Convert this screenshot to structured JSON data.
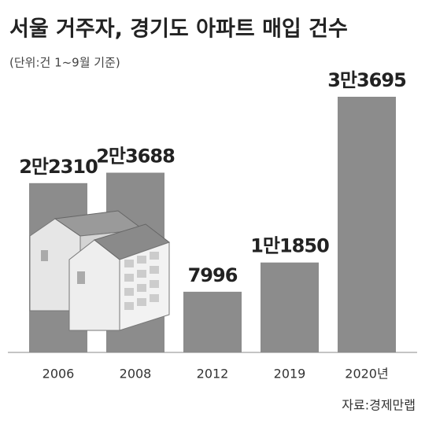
{
  "chart_data": {
    "type": "bar",
    "title": "서울 거주자, 경기도 아파트 매입 건수",
    "subtitle": "(단위:건 1~9월 기준)",
    "source": "자료:경제만랩",
    "categories": [
      "2006",
      "2008",
      "2012",
      "2019",
      "2020년"
    ],
    "values": [
      22310,
      23688,
      7996,
      11850,
      33695
    ],
    "value_labels": [
      "2만2310",
      "2만3688",
      "7996",
      "1만1850",
      "3만3695"
    ],
    "color": "#8c8c8c"
  }
}
